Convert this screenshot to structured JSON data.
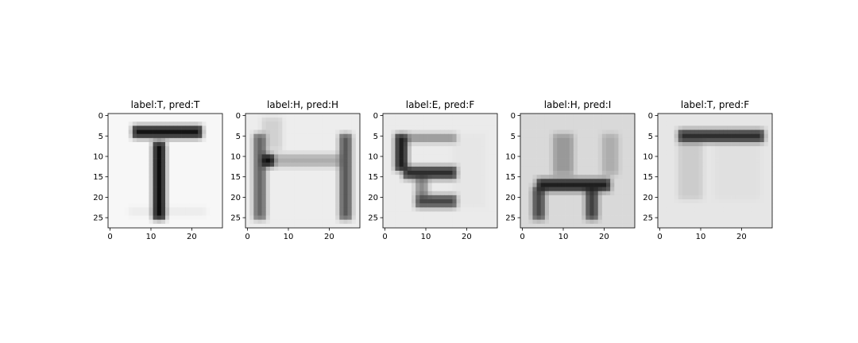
{
  "figure": {
    "background": "#ffffff",
    "colormap": "gray_r",
    "image_size": [
      28,
      28
    ]
  },
  "chart_data": [
    {
      "type": "heatmap",
      "title": "label:T, pred:T",
      "xlim": [
        0,
        27
      ],
      "ylim": [
        27,
        0
      ],
      "xticks": [
        "0",
        "10",
        "20"
      ],
      "yticks": [
        "0",
        "5",
        "10",
        "15",
        "20",
        "25"
      ],
      "bg": 0.03,
      "strokes": [
        {
          "x1": 6,
          "x2": 22,
          "y1": 3,
          "y2": 5,
          "v": 0.92
        },
        {
          "x1": 11,
          "x2": 13,
          "y1": 7,
          "y2": 25,
          "v": 0.95
        },
        {
          "x1": 5,
          "x2": 23,
          "y1": 23,
          "y2": 24,
          "v": 0.08
        }
      ]
    },
    {
      "type": "heatmap",
      "title": "label:H, pred:H",
      "xlim": [
        0,
        27
      ],
      "ylim": [
        27,
        0
      ],
      "xticks": [
        "0",
        "10",
        "20"
      ],
      "yticks": [
        "0",
        "5",
        "10",
        "15",
        "20",
        "25"
      ],
      "bg": 0.07,
      "strokes": [
        {
          "x1": 2,
          "x2": 4,
          "y1": 5,
          "y2": 25,
          "v": 0.6
        },
        {
          "x1": 23,
          "x2": 25,
          "y1": 5,
          "y2": 25,
          "v": 0.65
        },
        {
          "x1": 4,
          "x2": 23,
          "y1": 10,
          "y2": 12,
          "v": 0.32
        },
        {
          "x1": 4,
          "x2": 6,
          "y1": 10,
          "y2": 12,
          "v": 0.95
        },
        {
          "x1": 4,
          "x2": 8,
          "y1": 1,
          "y2": 8,
          "v": 0.18
        }
      ]
    },
    {
      "type": "heatmap",
      "title": "label:E, pred:F",
      "xlim": [
        0,
        27
      ],
      "ylim": [
        27,
        0
      ],
      "xticks": [
        "0",
        "10",
        "20"
      ],
      "yticks": [
        "0",
        "5",
        "10",
        "15",
        "20",
        "25"
      ],
      "bg": 0.08,
      "strokes": [
        {
          "x1": 3,
          "x2": 5,
          "y1": 5,
          "y2": 13,
          "v": 0.88
        },
        {
          "x1": 3,
          "x2": 17,
          "y1": 5,
          "y2": 6,
          "v": 0.45
        },
        {
          "x1": 5,
          "x2": 17,
          "y1": 13,
          "y2": 15,
          "v": 0.82
        },
        {
          "x1": 8,
          "x2": 17,
          "y1": 20,
          "y2": 22,
          "v": 0.72
        },
        {
          "x1": 8,
          "x2": 10,
          "y1": 15,
          "y2": 22,
          "v": 0.45
        },
        {
          "x1": 17,
          "x2": 24,
          "y1": 5,
          "y2": 22,
          "v": 0.1
        }
      ]
    },
    {
      "type": "heatmap",
      "title": "label:H, pred:I",
      "xlim": [
        0,
        27
      ],
      "ylim": [
        27,
        0
      ],
      "xticks": [
        "0",
        "10",
        "20"
      ],
      "yticks": [
        "0",
        "5",
        "10",
        "15",
        "20",
        "25"
      ],
      "bg": 0.15,
      "strokes": [
        {
          "x1": 4,
          "x2": 21,
          "y1": 16,
          "y2": 18,
          "v": 0.88
        },
        {
          "x1": 3,
          "x2": 5,
          "y1": 18,
          "y2": 25,
          "v": 0.72
        },
        {
          "x1": 16,
          "x2": 18,
          "y1": 18,
          "y2": 25,
          "v": 0.75
        },
        {
          "x1": 8,
          "x2": 12,
          "y1": 5,
          "y2": 14,
          "v": 0.4
        },
        {
          "x1": 20,
          "x2": 23,
          "y1": 5,
          "y2": 14,
          "v": 0.32
        },
        {
          "x1": 2,
          "x2": 6,
          "y1": 2,
          "y2": 15,
          "v": 0.05
        },
        {
          "x1": 13,
          "x2": 16,
          "y1": 2,
          "y2": 15,
          "v": 0.04
        }
      ]
    },
    {
      "type": "heatmap",
      "title": "label:T, pred:F",
      "xlim": [
        0,
        27
      ],
      "ylim": [
        27,
        0
      ],
      "xticks": [
        "0",
        "10",
        "20"
      ],
      "yticks": [
        "0",
        "5",
        "10",
        "15",
        "20",
        "25"
      ],
      "bg": 0.1,
      "strokes": [
        {
          "x1": 5,
          "x2": 25,
          "y1": 4,
          "y2": 6,
          "v": 0.82
        },
        {
          "x1": 5,
          "x2": 10,
          "y1": 6,
          "y2": 20,
          "v": 0.2
        },
        {
          "x1": 14,
          "x2": 24,
          "y1": 6,
          "y2": 20,
          "v": 0.12
        },
        {
          "x1": 1,
          "x2": 27,
          "y1": 20,
          "y2": 27,
          "v": 0.07
        }
      ]
    }
  ]
}
